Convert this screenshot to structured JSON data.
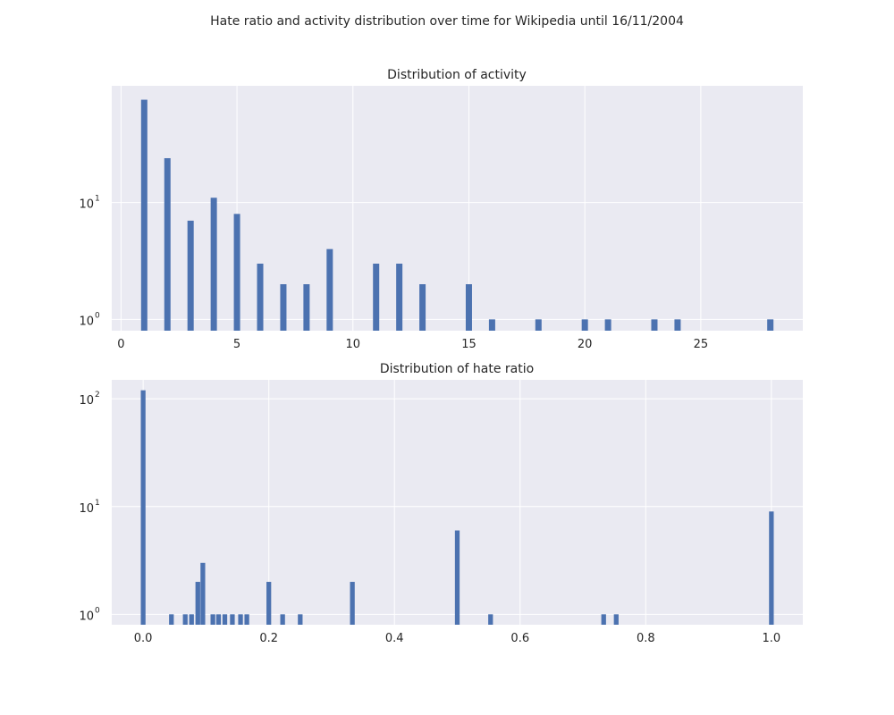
{
  "suptitle": "Hate ratio and activity distribution over time for Wikipedia until 16/11/2004",
  "colors": {
    "bar": "#4c72b0",
    "background": "#eaeaf2",
    "grid": "#ffffff"
  },
  "chart_data": [
    {
      "id": "activity",
      "type": "bar",
      "title": "Distribution of activity",
      "xlabel": "",
      "ylabel": "",
      "yscale": "log",
      "xlim": [
        -0.4,
        29.4
      ],
      "ylim": [
        0.8,
        100
      ],
      "xticks": [
        0,
        5,
        10,
        15,
        20,
        25
      ],
      "xtick_labels": [
        "0",
        "5",
        "10",
        "15",
        "20",
        "25"
      ],
      "yticks": [
        1,
        10
      ],
      "ytick_labels": [
        {
          "base": "10",
          "exp": "0"
        },
        {
          "base": "10",
          "exp": "1"
        }
      ],
      "bar_width": 0.27,
      "x": [
        1,
        2,
        3,
        4,
        5,
        6,
        7,
        8,
        9,
        11,
        12,
        13,
        15,
        16,
        18,
        20,
        21,
        23,
        24,
        28
      ],
      "values": [
        76,
        24,
        7,
        11,
        8,
        3,
        2,
        2,
        4,
        3,
        3,
        2,
        2,
        1,
        1,
        1,
        1,
        1,
        1,
        1
      ],
      "grid": true
    },
    {
      "id": "hate",
      "type": "bar",
      "title": "Distribution of hate ratio",
      "xlabel": "",
      "ylabel": "",
      "yscale": "log",
      "xlim": [
        -0.05,
        1.05
      ],
      "ylim": [
        0.8,
        150
      ],
      "xticks": [
        0.0,
        0.2,
        0.4,
        0.6,
        0.8,
        1.0
      ],
      "xtick_labels": [
        "0.0",
        "0.2",
        "0.4",
        "0.6",
        "0.8",
        "1.0"
      ],
      "yticks": [
        1,
        10,
        100
      ],
      "ytick_labels": [
        {
          "base": "10",
          "exp": "0"
        },
        {
          "base": "10",
          "exp": "1"
        },
        {
          "base": "10",
          "exp": "2"
        }
      ],
      "bar_width": 0.0075,
      "x": [
        0.0,
        0.045,
        0.067,
        0.077,
        0.087,
        0.095,
        0.111,
        0.12,
        0.13,
        0.142,
        0.155,
        0.165,
        0.2,
        0.222,
        0.25,
        0.333,
        0.5,
        0.553,
        0.733,
        0.753,
        1.0
      ],
      "values": [
        120,
        1,
        1,
        1,
        2,
        3,
        1,
        1,
        1,
        1,
        1,
        1,
        2,
        1,
        1,
        2,
        6,
        1,
        1,
        1,
        9
      ],
      "grid": true
    }
  ]
}
